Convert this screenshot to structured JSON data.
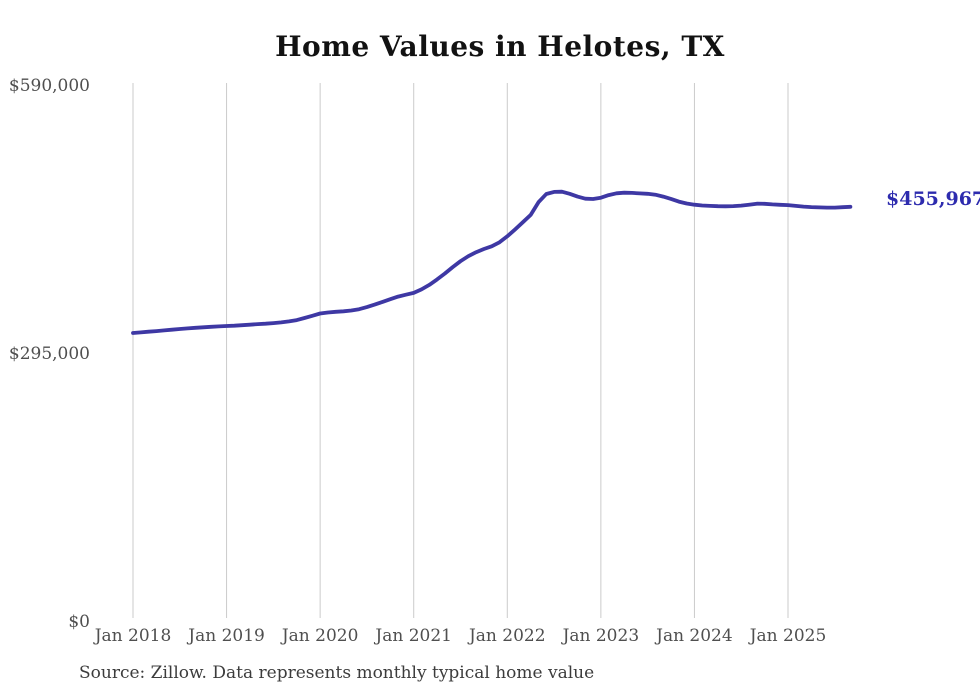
{
  "page": {
    "background": "#ffffff"
  },
  "chart_data": {
    "type": "line",
    "title": "Home Values in Helotes, TX",
    "source": "Source: Zillow. Data represents monthly typical home value",
    "end_label": "$455,967",
    "current_value": 455967,
    "unit": "USD",
    "months_start": "2018-01",
    "months_end": "2025-09",
    "ylim": [
      0,
      590000
    ],
    "grid": "vertical-only",
    "legend": "none",
    "x_ticks": [
      {
        "label": "Jan 2018",
        "month": 0
      },
      {
        "label": "Jan 2019",
        "month": 12
      },
      {
        "label": "Jan 2020",
        "month": 24
      },
      {
        "label": "Jan 2021",
        "month": 36
      },
      {
        "label": "Jan 2022",
        "month": 48
      },
      {
        "label": "Jan 2023",
        "month": 60
      },
      {
        "label": "Jan 2024",
        "month": 72
      },
      {
        "label": "Jan 2025",
        "month": 84
      }
    ],
    "y_ticks": [
      {
        "label": "$590,000",
        "value": 590000
      },
      {
        "label": "$295,000",
        "value": 295000
      },
      {
        "label": "$0",
        "value": 0
      }
    ],
    "series": [
      {
        "name": "Monthly typical home value",
        "values": [
          317000,
          317700,
          318400,
          319100,
          319900,
          320700,
          321400,
          322100,
          322700,
          323300,
          323800,
          324300,
          324700,
          325100,
          325600,
          326200,
          326800,
          327300,
          327900,
          328700,
          329800,
          331200,
          333500,
          336000,
          338500,
          339600,
          340300,
          340900,
          341800,
          343200,
          345500,
          348300,
          351300,
          354200,
          357100,
          359200,
          361200,
          365000,
          370000,
          376000,
          382500,
          389500,
          396000,
          401500,
          406000,
          409500,
          412500,
          416800,
          423500,
          431000,
          439000,
          447000,
          461000,
          470000,
          472300,
          472500,
          470200,
          467200,
          464900,
          464500,
          466000,
          468800,
          470800,
          471500,
          471200,
          470700,
          470200,
          469300,
          467200,
          464600,
          461700,
          459600,
          458200,
          457400,
          456900,
          456600,
          456500,
          456700,
          457200,
          458200,
          459300,
          459200,
          458600,
          458100,
          457800,
          456900,
          456100,
          455600,
          455300,
          455100,
          455000,
          455500,
          455967
        ]
      }
    ],
    "colors": {
      "line": "#3E38A4",
      "value_label": "#2D2BAE",
      "grid": "#CBCBCB",
      "axis_labels": "#4F4F4F",
      "title": "#121212",
      "source_text": "#3C3C3C"
    }
  }
}
